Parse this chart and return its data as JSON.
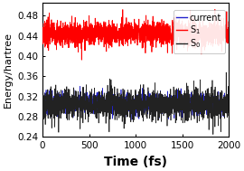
{
  "title": "",
  "xlabel": "Time (fs)",
  "ylabel": "Energy/hartree",
  "xlim": [
    0,
    2000
  ],
  "ylim": [
    0.24,
    0.505
  ],
  "yticks": [
    0.24,
    0.28,
    0.32,
    0.36,
    0.4,
    0.44,
    0.48
  ],
  "xticks": [
    0,
    500,
    1000,
    1500,
    2000
  ],
  "s1_mean": 0.445,
  "s1_std": 0.012,
  "s0_mean": 0.305,
  "s0_std": 0.014,
  "s1_color": "#ff0000",
  "s0_color": "#222222",
  "current_color": "#2222cc",
  "n_points": 2000,
  "seed": 7,
  "background_color": "#ffffff",
  "xlabel_fontsize": 10,
  "ylabel_fontsize": 8,
  "tick_fontsize": 7.5,
  "legend_fontsize": 7,
  "linewidth_s1": 0.55,
  "linewidth_s0": 0.5,
  "linewidth_current": 0.5
}
